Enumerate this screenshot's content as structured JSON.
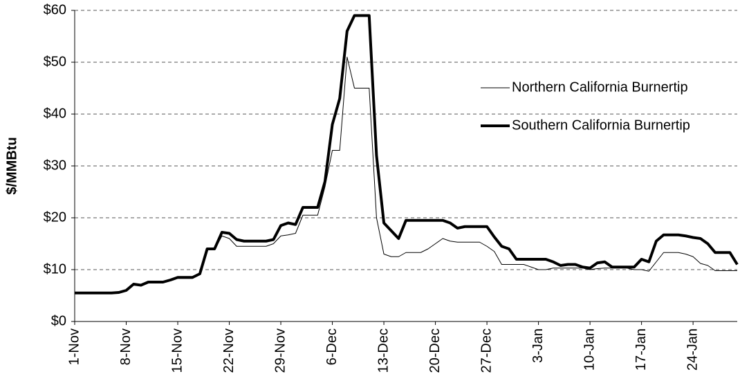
{
  "chart_data": {
    "type": "line",
    "y_label": "$/MMBtu",
    "categories": [
      "1-Nov",
      null,
      null,
      null,
      null,
      null,
      null,
      "8-Nov",
      null,
      null,
      null,
      null,
      null,
      null,
      "15-Nov",
      null,
      null,
      null,
      null,
      null,
      null,
      "22-Nov",
      null,
      null,
      null,
      null,
      null,
      null,
      "29-Nov",
      null,
      null,
      null,
      null,
      null,
      null,
      "6-Dec",
      null,
      null,
      null,
      null,
      null,
      null,
      "13-Dec",
      null,
      null,
      null,
      null,
      null,
      null,
      "20-Dec",
      null,
      null,
      null,
      null,
      null,
      null,
      "27-Dec",
      null,
      null,
      null,
      null,
      null,
      null,
      "3-Jan",
      null,
      null,
      null,
      null,
      null,
      null,
      "10-Jan",
      null,
      null,
      null,
      null,
      null,
      null,
      "17-Jan",
      null,
      null,
      null,
      null,
      null,
      null,
      "24-Jan",
      null,
      null,
      null,
      null,
      null,
      null
    ],
    "series": [
      {
        "name": "Northern California Burnertip",
        "color": "#000000",
        "line_width": 1,
        "values": [
          5.5,
          5.5,
          5.5,
          5.5,
          5.5,
          5.5,
          5.6,
          6,
          7,
          6.9,
          7.5,
          7.5,
          7.5,
          7.9,
          8.3,
          8.3,
          8.3,
          9,
          13.8,
          13.8,
          16.5,
          16,
          14.5,
          14.5,
          14.5,
          14.5,
          14.5,
          15,
          16.5,
          16.7,
          17,
          20.5,
          20.5,
          20.5,
          26,
          33,
          33,
          51,
          45,
          45,
          45,
          20,
          13,
          12.5,
          12.5,
          13.3,
          13.3,
          13.3,
          14,
          15,
          16,
          15.5,
          15.3,
          15.3,
          15.3,
          15.3,
          14.5,
          13.5,
          11,
          11,
          11,
          11,
          10.5,
          10,
          10,
          10.3,
          10.3,
          10.3,
          10.3,
          10.3,
          10,
          10.2,
          10.3,
          10.3,
          10.3,
          10.3,
          10,
          10,
          9.7,
          11.5,
          13.3,
          13.3,
          13.3,
          13,
          12.5,
          11.2,
          10.8,
          9.8,
          9.8,
          9.8,
          9.8
        ]
      },
      {
        "name": "Southern California Burnertip",
        "color": "#000000",
        "line_width": 4,
        "values": [
          5.5,
          5.5,
          5.5,
          5.5,
          5.5,
          5.5,
          5.6,
          6,
          7.2,
          7,
          7.6,
          7.6,
          7.6,
          8,
          8.5,
          8.5,
          8.5,
          9.2,
          14,
          14,
          17.2,
          17,
          15.8,
          15.5,
          15.5,
          15.5,
          15.5,
          15.8,
          18.5,
          19,
          18.7,
          22,
          22,
          22,
          27,
          38,
          43,
          56,
          59,
          59,
          59,
          32,
          19,
          17.5,
          16,
          19.5,
          19.5,
          19.5,
          19.5,
          19.5,
          19.5,
          19,
          18,
          18.3,
          18.3,
          18.3,
          18.3,
          16.3,
          14.5,
          14,
          12,
          12,
          12,
          12,
          12,
          11.5,
          10.8,
          11,
          11,
          10.5,
          10.3,
          11.3,
          11.5,
          10.5,
          10.5,
          10.5,
          10.5,
          12,
          11.5,
          15.5,
          16.7,
          16.7,
          16.7,
          16.5,
          16.2,
          16,
          15,
          13.3,
          13.3,
          13.3,
          11
        ]
      }
    ],
    "ylim": [
      0,
      60
    ],
    "yticks": [
      {
        "value": 0,
        "label": "$0"
      },
      {
        "value": 10,
        "label": "$10"
      },
      {
        "value": 20,
        "label": "$20"
      },
      {
        "value": 30,
        "label": "$30"
      },
      {
        "value": 40,
        "label": "$40"
      },
      {
        "value": 50,
        "label": "$50"
      },
      {
        "value": 60,
        "label": "$60"
      }
    ],
    "grid": true,
    "legend": "right"
  }
}
